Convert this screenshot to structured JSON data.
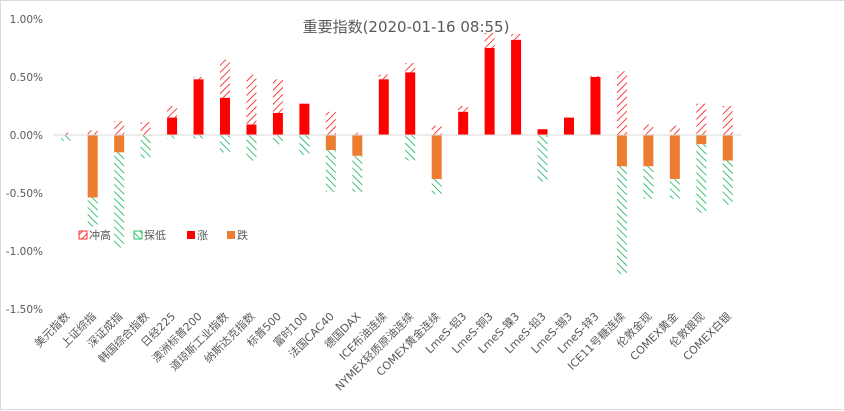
{
  "chart_data": {
    "type": "bar",
    "title": "重要指数(2020-01-16 08:55)",
    "ylim": [
      -1.5,
      1.0
    ],
    "yticks": [
      1.0,
      0.5,
      0.0,
      -0.5,
      -1.0,
      -1.5
    ],
    "ytick_labels": [
      "1.00%",
      "0.50%",
      "0.00%",
      "-0.50%",
      "-1.00%",
      "-1.50%"
    ],
    "grid": false,
    "legend_position": "left-bottom-inside",
    "legend": [
      "冲高",
      "探低",
      "涨",
      "跌"
    ],
    "colors": {
      "up": "#ff0000",
      "down": "#ed7d31",
      "high": "#ff0000",
      "low": "#00b050",
      "axis": "#d9d9d9",
      "text": "#595959"
    },
    "categories": [
      "美元指数",
      "上证综指",
      "深证成指",
      "韩国综合指数",
      "日经225",
      "澳洲标普200",
      "道琼斯工业指数",
      "纳斯达克指数",
      "标普500",
      "富时100",
      "法国CAC40",
      "德国DAX",
      "ICE布油连续",
      "NYMEX轻质原油连续",
      "COMEX黄金连续",
      "LmeS-铝3",
      "LmeS-铜3",
      "LmeS-镍3",
      "LmeS-铅3",
      "LmeS-锡3",
      "LmeS-锌3",
      "ICE11号糖连续",
      "伦敦金现",
      "COMEX黄金",
      "伦敦银现",
      "COMEX白银"
    ],
    "series": [
      {
        "name": "冲高",
        "values": [
          0.02,
          0.04,
          0.12,
          0.11,
          0.25,
          0.5,
          0.65,
          0.52,
          0.48,
          0.27,
          0.2,
          0.02,
          0.52,
          0.62,
          0.08,
          0.25,
          0.88,
          0.87,
          0.05,
          0.15,
          0.51,
          0.55,
          0.09,
          0.08,
          0.27,
          0.25
        ]
      },
      {
        "name": "探低",
        "values": [
          -0.05,
          -0.79,
          -0.97,
          -0.2,
          -0.03,
          -0.03,
          -0.15,
          -0.22,
          -0.08,
          -0.17,
          -0.49,
          -0.49,
          0.0,
          -0.22,
          -0.51,
          0.0,
          0.0,
          0.0,
          -0.4,
          0.0,
          0.0,
          -1.2,
          -0.55,
          -0.55,
          -0.67,
          -0.6
        ]
      },
      {
        "name": "涨",
        "values": [
          0,
          0,
          0,
          0,
          0.15,
          0.48,
          0.32,
          0.09,
          0.19,
          0.27,
          0,
          0,
          0.48,
          0.54,
          0,
          0.2,
          0.75,
          0.82,
          0.05,
          0.15,
          0.5,
          0,
          0,
          0,
          0,
          0
        ]
      },
      {
        "name": "跌",
        "values": [
          0,
          -0.54,
          -0.15,
          0,
          0,
          0,
          0,
          0,
          0,
          0,
          -0.13,
          -0.18,
          0,
          0,
          -0.38,
          0,
          0,
          0,
          0,
          0,
          0,
          -0.27,
          -0.27,
          -0.38,
          -0.08,
          -0.22
        ]
      }
    ]
  }
}
